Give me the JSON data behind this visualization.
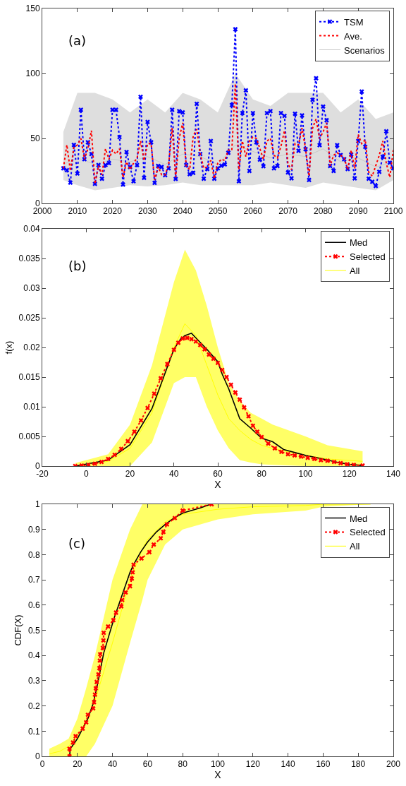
{
  "chart_data": [
    {
      "type": "line",
      "annotations": [
        "(a)"
      ],
      "xlim": [
        2000,
        2100
      ],
      "xticks": [
        2000,
        2010,
        2020,
        2030,
        2040,
        2050,
        2060,
        2070,
        2080,
        2090,
        2100
      ],
      "ylim": [
        0,
        150
      ],
      "yticks": [
        0,
        50,
        100,
        150
      ],
      "grid": false,
      "legend": "top right",
      "x": [
        2006,
        2007,
        2008,
        2009,
        2010,
        2011,
        2012,
        2013,
        2014,
        2015,
        2016,
        2017,
        2018,
        2019,
        2020,
        2021,
        2022,
        2023,
        2024,
        2025,
        2026,
        2027,
        2028,
        2029,
        2030,
        2031,
        2032,
        2033,
        2034,
        2035,
        2036,
        2037,
        2038,
        2039,
        2040,
        2041,
        2042,
        2043,
        2044,
        2045,
        2046,
        2047,
        2048,
        2049,
        2050,
        2051,
        2052,
        2053,
        2054,
        2055,
        2056,
        2057,
        2058,
        2059,
        2060,
        2061,
        2062,
        2063,
        2064,
        2065,
        2066,
        2067,
        2068,
        2069,
        2070,
        2071,
        2072,
        2073,
        2074,
        2075,
        2076,
        2077,
        2078,
        2079,
        2080,
        2081,
        2082,
        2083,
        2084,
        2085,
        2086,
        2087,
        2088,
        2089,
        2090,
        2091,
        2092,
        2093,
        2094,
        2095,
        2096,
        2097,
        2098,
        2099,
        2100
      ],
      "series": [
        {
          "name": "Scenarios",
          "color": "#c8c8c8",
          "x": [
            2006,
            2010,
            2015,
            2020,
            2025,
            2030,
            2035,
            2040,
            2045,
            2050,
            2055,
            2060,
            2065,
            2070,
            2075,
            2080,
            2085,
            2090,
            2095,
            2100
          ],
          "values": [
            30,
            35,
            30,
            34,
            32,
            36,
            30,
            38,
            36,
            30,
            45,
            40,
            35,
            38,
            36,
            42,
            32,
            35,
            28,
            32
          ],
          "lower": [
            18,
            14,
            10,
            12,
            14,
            13,
            14,
            16,
            14,
            14,
            14,
            14,
            16,
            14,
            12,
            16,
            14,
            12,
            10,
            18
          ],
          "upper": [
            55,
            85,
            85,
            80,
            70,
            80,
            70,
            85,
            80,
            70,
            100,
            80,
            75,
            85,
            85,
            85,
            70,
            80,
            65,
            70
          ]
        },
        {
          "name": "TSM",
          "color": "#0000ff",
          "line_style": "dotted",
          "marker": "cross",
          "values": [
            27,
            25.6,
            16,
            45,
            23,
            72,
            34,
            47,
            38,
            15,
            29.5,
            19,
            29.5,
            31,
            72,
            72,
            51,
            14.5,
            39.5,
            28,
            17,
            29.5,
            82,
            19.7,
            62.7,
            47,
            15.8,
            28.8,
            28,
            21.7,
            27,
            72,
            18.8,
            71,
            70,
            29.5,
            22.5,
            23.5,
            76.6,
            38,
            19,
            26.5,
            48,
            19,
            27,
            29,
            30,
            39,
            75.7,
            134,
            17,
            69.5,
            87,
            25,
            69.5,
            47,
            33.7,
            28.6,
            69.5,
            71,
            27,
            28.8,
            69.5,
            67.3,
            23.8,
            19.3,
            69,
            40.5,
            67.7,
            41.7,
            18,
            79.7,
            96.3,
            44.8,
            74.5,
            64,
            28.8,
            25,
            44.8,
            37.2,
            34,
            26.5,
            37.6,
            19.3,
            48,
            86,
            43.5,
            19,
            16.6,
            13.4,
            24.3,
            35.8,
            55.5,
            31.3,
            27
          ]
        },
        {
          "name": "Ave.",
          "color": "#ff0000",
          "line_style": "dotted",
          "marker": "none",
          "values": [
            27,
            45,
            25,
            43,
            45,
            50,
            34,
            42,
            56,
            15,
            29,
            22,
            42,
            34,
            41,
            38,
            42,
            20,
            32,
            26,
            31,
            35,
            48,
            33,
            46,
            46,
            18,
            28,
            22,
            22,
            30,
            58,
            20,
            50,
            62,
            29,
            26,
            52,
            57,
            38,
            27,
            28,
            33,
            19,
            31,
            34,
            33,
            41,
            41,
            92,
            26,
            48,
            36,
            48,
            51,
            50,
            42,
            34,
            48,
            50,
            37,
            35,
            44,
            56,
            30,
            26,
            46,
            45,
            58,
            42,
            21,
            58,
            65,
            50,
            55,
            62,
            29,
            37,
            39,
            37,
            35,
            26,
            41,
            27,
            53,
            46,
            49,
            24,
            21,
            29,
            37,
            48,
            31,
            20,
            41
          ]
        }
      ]
    },
    {
      "type": "line",
      "annotations": [
        "(b)"
      ],
      "xlabel": "X",
      "ylabel": "f(x)",
      "xlim": [
        -20,
        140
      ],
      "xticks": [
        -20,
        0,
        20,
        40,
        60,
        80,
        100,
        120,
        140
      ],
      "ylim": [
        0,
        0.04
      ],
      "yticks": [
        0,
        0.005,
        0.01,
        0.015,
        0.02,
        0.025,
        0.03,
        0.035,
        0.04
      ],
      "grid": false,
      "legend": "top right",
      "series": [
        {
          "name": "Med",
          "color": "#000000",
          "line_style": "solid",
          "marker": "none",
          "x": [
            -5,
            10,
            20,
            30,
            35,
            40,
            43,
            45,
            48,
            50,
            55,
            60,
            62,
            65,
            70,
            75,
            80,
            85,
            90,
            100,
            108,
            115,
            120,
            126
          ],
          "values": [
            0,
            0.001,
            0.0036,
            0.0097,
            0.0147,
            0.0197,
            0.0214,
            0.022,
            0.0224,
            0.0216,
            0.0197,
            0.0176,
            0.0155,
            0.013,
            0.008,
            0.0064,
            0.0047,
            0.0041,
            0.0028,
            0.0018,
            0.0012,
            0.0006,
            0.0003,
            0.0001
          ]
        },
        {
          "name": "Selected",
          "color": "#ff0000",
          "line_style": "dotted",
          "marker": "cross",
          "x": [
            -5,
            -2,
            1,
            4,
            7,
            10,
            13,
            16,
            19,
            22,
            25,
            28,
            31,
            34,
            37,
            40,
            42,
            44,
            46,
            48,
            50,
            52,
            54,
            56,
            58,
            60,
            62,
            64,
            66,
            68,
            70,
            72,
            74,
            76,
            78,
            80,
            83,
            86,
            89,
            92,
            95,
            98,
            101,
            104,
            107,
            110,
            113,
            116,
            119,
            122,
            126
          ],
          "values": [
            0,
            0.0001,
            0.0002,
            0.0004,
            0.0007,
            0.0012,
            0.0019,
            0.0029,
            0.0042,
            0.0058,
            0.0077,
            0.0098,
            0.0122,
            0.0148,
            0.0172,
            0.0196,
            0.0208,
            0.0215,
            0.0216,
            0.0214,
            0.021,
            0.0204,
            0.0197,
            0.0188,
            0.0181,
            0.0174,
            0.0162,
            0.015,
            0.0137,
            0.0124,
            0.0112,
            0.0099,
            0.0084,
            0.0068,
            0.0058,
            0.0049,
            0.0038,
            0.003,
            0.0024,
            0.002,
            0.0018,
            0.0016,
            0.0014,
            0.0012,
            0.001,
            0.0009,
            0.0007,
            0.0005,
            0.0003,
            0.0002,
            0.0001
          ]
        },
        {
          "name": "All",
          "color": "#ffff00",
          "x": [
            -5,
            10,
            20,
            30,
            40,
            45,
            50,
            55,
            60,
            65,
            70,
            75,
            80,
            85,
            100,
            110,
            126
          ],
          "values": [
            0,
            0.0008,
            0.003,
            0.009,
            0.02,
            0.024,
            0.022,
            0.017,
            0.012,
            0.008,
            0.006,
            0.0045,
            0.0035,
            0.003,
            0.0018,
            0.0012,
            0.0008
          ],
          "lower": [
            0,
            0,
            0,
            0.004,
            0.014,
            0.015,
            0.015,
            0.01,
            0.006,
            0.003,
            0.001,
            0.0006,
            0.0003,
            0.0002,
            0,
            0,
            0
          ],
          "upper": [
            0.0005,
            0.002,
            0.007,
            0.017,
            0.031,
            0.0365,
            0.033,
            0.027,
            0.02,
            0.014,
            0.011,
            0.009,
            0.008,
            0.007,
            0.005,
            0.0035,
            0.0025
          ]
        }
      ]
    },
    {
      "type": "line",
      "annotations": [
        "(c)"
      ],
      "xlabel": "X",
      "ylabel": "CDF(X)",
      "xlim": [
        0,
        200
      ],
      "xticks": [
        0,
        20,
        40,
        60,
        80,
        100,
        120,
        140,
        160,
        180,
        200
      ],
      "ylim": [
        0,
        1
      ],
      "yticks": [
        0,
        0.1,
        0.2,
        0.3,
        0.4,
        0.5,
        0.6,
        0.7,
        0.8,
        0.9,
        1
      ],
      "grid": false,
      "legend": "top right",
      "series": [
        {
          "name": "Med",
          "color": "#000000",
          "line_style": "solid",
          "marker": "none",
          "x": [
            15.5,
            16,
            20,
            23,
            26,
            29,
            31,
            33,
            35,
            38,
            41,
            44,
            47,
            50,
            52,
            56,
            60,
            65,
            70,
            75,
            80,
            90,
            96
          ],
          "values": [
            0,
            0.03,
            0.07,
            0.11,
            0.15,
            0.21,
            0.27,
            0.34,
            0.41,
            0.48,
            0.55,
            0.61,
            0.67,
            0.73,
            0.76,
            0.81,
            0.85,
            0.89,
            0.92,
            0.945,
            0.965,
            0.985,
            1
          ]
        },
        {
          "name": "Selected",
          "color": "#ff0000",
          "line_style": "dotted",
          "marker": "cross",
          "x": [
            15.5,
            15.5,
            17.5,
            19,
            23,
            25,
            26,
            29,
            29.5,
            30,
            30.5,
            31,
            32,
            32.5,
            32.8,
            33,
            34.5,
            34.8,
            35,
            37.5,
            40.5,
            42,
            45,
            45.5,
            47.5,
            50,
            51,
            51.5,
            52,
            56.5,
            61,
            63.5,
            67.5,
            69,
            71,
            75.5,
            80,
            96.5
          ],
          "values": [
            0,
            0.03,
            0.055,
            0.08,
            0.11,
            0.135,
            0.165,
            0.19,
            0.215,
            0.245,
            0.27,
            0.295,
            0.325,
            0.35,
            0.38,
            0.405,
            0.43,
            0.46,
            0.49,
            0.515,
            0.54,
            0.57,
            0.595,
            0.62,
            0.65,
            0.675,
            0.705,
            0.73,
            0.76,
            0.785,
            0.81,
            0.84,
            0.865,
            0.89,
            0.92,
            0.945,
            0.975,
            1
          ]
        },
        {
          "name": "All",
          "color": "#ffff00",
          "x": [
            4,
            10,
            15,
            20,
            25,
            30,
            40,
            50,
            57,
            60,
            70,
            80,
            100,
            120,
            150,
            160,
            187
          ],
          "values": [
            0.01,
            0.02,
            0.04,
            0.08,
            0.14,
            0.22,
            0.45,
            0.7,
            0.82,
            0.86,
            0.93,
            0.96,
            0.98,
            0.99,
            0.995,
            1,
            1
          ],
          "lower": [
            0,
            0,
            0,
            0,
            0,
            0.05,
            0.2,
            0.45,
            0.62,
            0.7,
            0.84,
            0.9,
            0.94,
            0.96,
            0.975,
            0.99,
            1
          ],
          "upper": [
            0.03,
            0.05,
            0.07,
            0.15,
            0.27,
            0.4,
            0.7,
            0.9,
            1,
            1,
            1,
            1,
            1,
            1,
            1,
            1,
            1
          ]
        }
      ]
    }
  ]
}
